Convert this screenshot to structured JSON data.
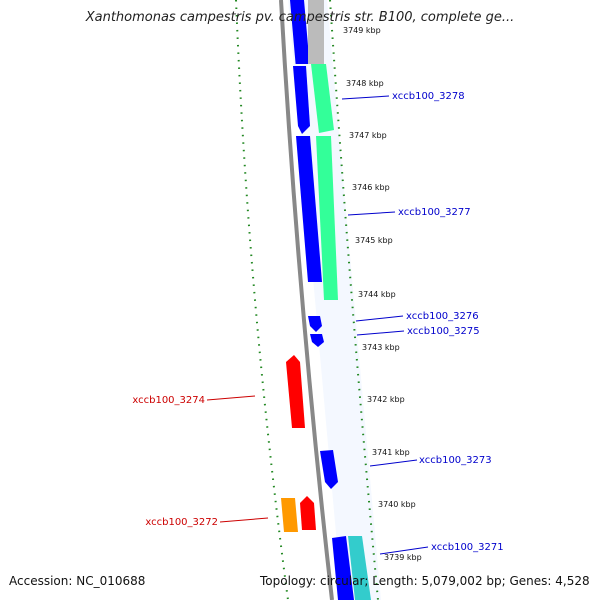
{
  "title": "Xanthomonas campestris pv. campestris str. B100, complete ge...",
  "footer": {
    "accession": "Accession: NC_010688",
    "stats": "Topology: circular; Length: 5,079,002 bp; Genes: 4,528"
  },
  "kbp_ticks": [
    "3749 kbp",
    "3748 kbp",
    "3747 kbp",
    "3746 kbp",
    "3745 kbp",
    "3744 kbp",
    "3743 kbp",
    "3742 kbp",
    "3741 kbp",
    "3740 kbp",
    "3739 kbp"
  ],
  "gene_labels": {
    "forward": [
      "xccb100_3278",
      "xccb100_3277",
      "xccb100_3276",
      "xccb100_3275",
      "xccb100_3273",
      "xccb100_3271"
    ],
    "reverse": [
      "xccb100_3274",
      "xccb100_3272"
    ]
  },
  "colors": {
    "forward_cds": "#0000ff",
    "reverse_cds": "#ff0000",
    "orange_feature": "#ff9900",
    "green_feature": "#33ff99",
    "cyan_feature": "#33cccc",
    "gray_feature": "#bbbbbb",
    "backbone": "#888888",
    "gc_dots": "#228822",
    "forward_label": "#0000cc",
    "reverse_label": "#cc0000"
  }
}
